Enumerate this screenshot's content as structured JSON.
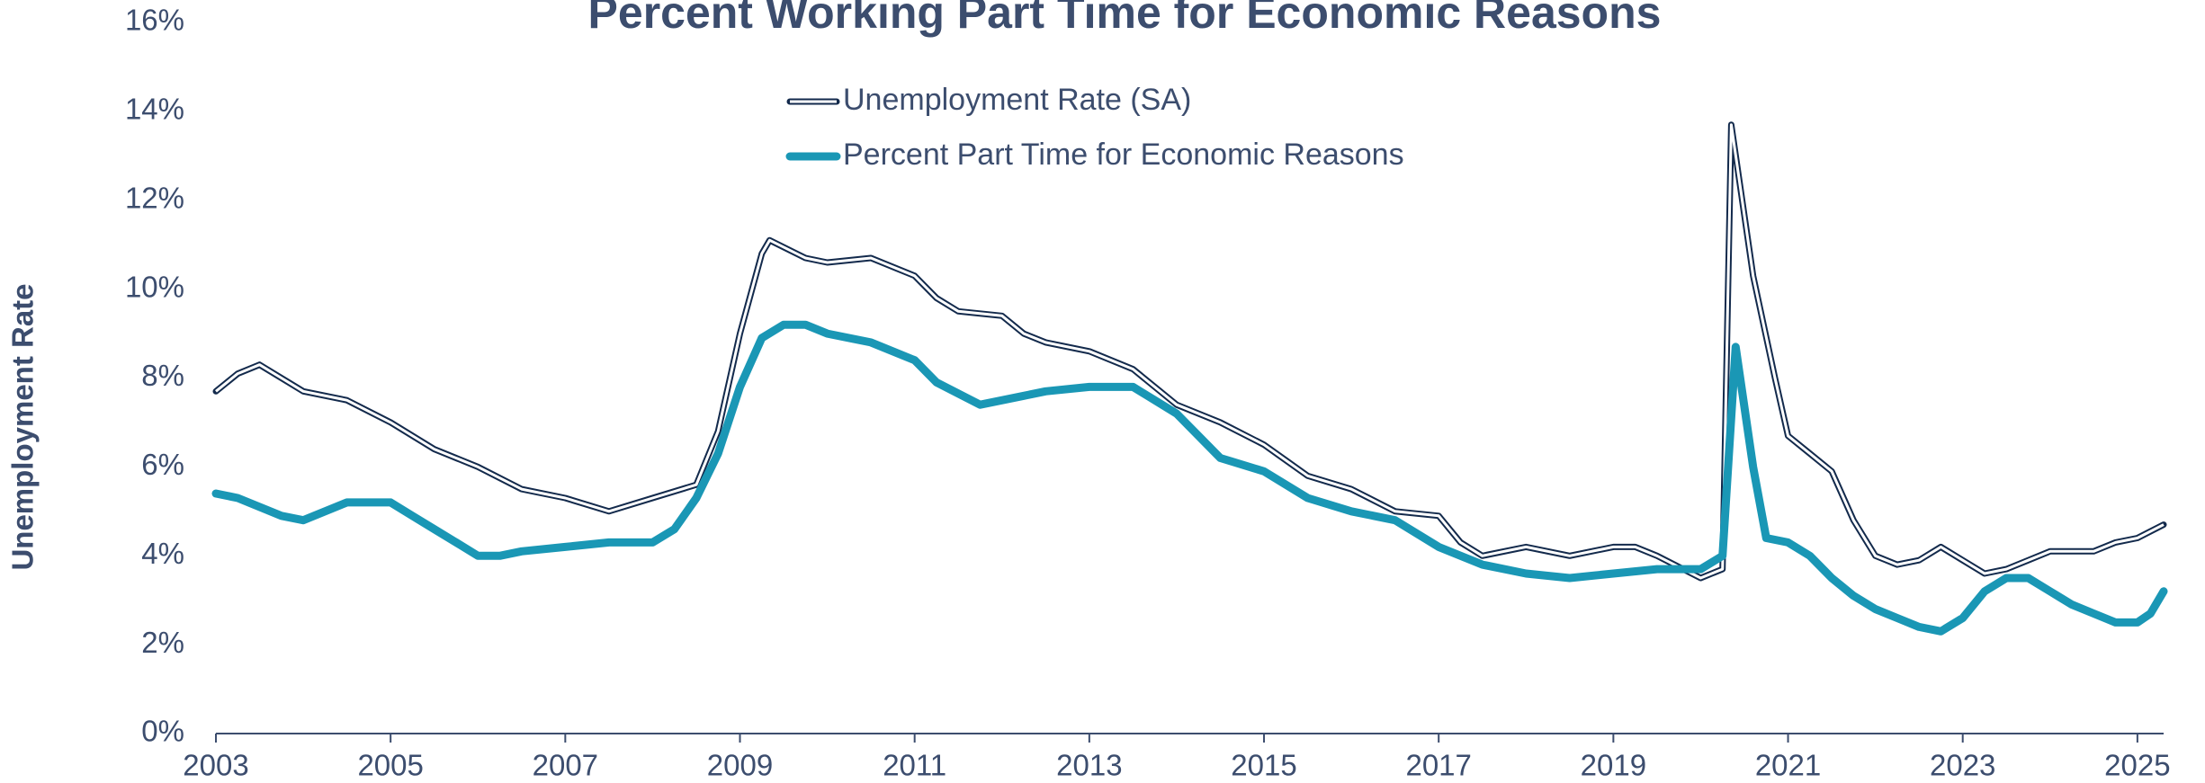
{
  "chart_data": {
    "type": "line",
    "title": "Percent Working Part Time for Economic Reasons",
    "y_label": "Unemployment Rate",
    "xlim": [
      2003,
      2025.3
    ],
    "xticks": [
      2003,
      2005,
      2007,
      2009,
      2011,
      2013,
      2015,
      2017,
      2019,
      2021,
      2023,
      2025
    ],
    "ylim": [
      0,
      16
    ],
    "yticks": [
      {
        "value": 0,
        "label": "0%"
      },
      {
        "value": 2,
        "label": "2%"
      },
      {
        "value": 4,
        "label": "4%"
      },
      {
        "value": 6,
        "label": "6%"
      },
      {
        "value": 8,
        "label": "8%"
      },
      {
        "value": 10,
        "label": "10%"
      },
      {
        "value": 12,
        "label": "12%"
      },
      {
        "value": 14,
        "label": "14%"
      },
      {
        "value": 16,
        "label": "16%"
      }
    ],
    "grid": false,
    "series": [
      {
        "name": "Unemployment Rate (SA)",
        "color": "#132a4c",
        "outline": true,
        "x": [
          2003.0,
          2003.25,
          2003.5,
          2003.75,
          2004.0,
          2004.5,
          2005.0,
          2005.5,
          2006.0,
          2006.5,
          2007.0,
          2007.5,
          2008.0,
          2008.5,
          2008.75,
          2009.0,
          2009.25,
          2009.34,
          2009.75,
          2010.0,
          2010.5,
          2011.0,
          2011.25,
          2011.5,
          2012.0,
          2012.25,
          2012.5,
          2013.0,
          2013.5,
          2014.0,
          2014.5,
          2015.0,
          2015.5,
          2016.0,
          2016.5,
          2017.0,
          2017.25,
          2017.5,
          2018.0,
          2018.5,
          2019.0,
          2019.25,
          2019.5,
          2020.0,
          2020.25,
          2020.35,
          2020.6,
          2020.85,
          2021.0,
          2021.25,
          2021.5,
          2021.75,
          2022.0,
          2022.25,
          2022.5,
          2022.75,
          2023.0,
          2023.25,
          2023.5,
          2023.75,
          2024.0,
          2024.5,
          2024.75,
          2025.0,
          2025.3
        ],
        "values": [
          7.7,
          8.1,
          8.3,
          8.0,
          7.7,
          7.5,
          7.0,
          6.4,
          6.0,
          5.5,
          5.3,
          5.0,
          5.3,
          5.6,
          6.8,
          9.0,
          10.8,
          11.1,
          10.7,
          10.6,
          10.7,
          10.3,
          9.8,
          9.5,
          9.4,
          9.0,
          8.8,
          8.6,
          8.2,
          7.4,
          7.0,
          6.5,
          5.8,
          5.5,
          5.0,
          4.9,
          4.3,
          4.0,
          4.2,
          4.0,
          4.2,
          4.2,
          4.0,
          3.5,
          3.7,
          13.7,
          10.3,
          8.0,
          6.7,
          6.3,
          5.9,
          4.8,
          4.0,
          3.8,
          3.9,
          4.2,
          3.9,
          3.6,
          3.7,
          3.9,
          4.1,
          4.1,
          4.3,
          4.4,
          4.7
        ]
      },
      {
        "name": "Percent Part Time for Economic Reasons",
        "color": "#1a97b5",
        "outline": false,
        "x": [
          2003.0,
          2003.25,
          2003.75,
          2004.0,
          2004.5,
          2005.0,
          2005.25,
          2005.5,
          2005.75,
          2006.0,
          2006.25,
          2006.5,
          2007.0,
          2007.5,
          2008.0,
          2008.25,
          2008.5,
          2008.75,
          2009.0,
          2009.25,
          2009.5,
          2009.75,
          2010.0,
          2010.5,
          2011.0,
          2011.25,
          2011.75,
          2012.25,
          2012.5,
          2013.0,
          2013.5,
          2014.0,
          2014.5,
          2015.0,
          2015.5,
          2016.0,
          2016.5,
          2017.0,
          2017.5,
          2018.0,
          2018.5,
          2019.0,
          2019.5,
          2020.0,
          2020.25,
          2020.4,
          2020.6,
          2020.75,
          2021.0,
          2021.25,
          2021.5,
          2021.75,
          2022.0,
          2022.25,
          2022.5,
          2022.75,
          2023.0,
          2023.25,
          2023.5,
          2023.75,
          2024.0,
          2024.25,
          2024.5,
          2024.75,
          2025.0,
          2025.15,
          2025.3
        ],
        "values": [
          5.4,
          5.3,
          4.9,
          4.8,
          5.2,
          5.2,
          4.9,
          4.6,
          4.3,
          4.0,
          4.0,
          4.1,
          4.2,
          4.3,
          4.3,
          4.6,
          5.3,
          6.3,
          7.8,
          8.9,
          9.2,
          9.2,
          9.0,
          8.8,
          8.4,
          7.9,
          7.4,
          7.6,
          7.7,
          7.8,
          7.8,
          7.2,
          6.2,
          5.9,
          5.3,
          5.0,
          4.8,
          4.2,
          3.8,
          3.6,
          3.5,
          3.6,
          3.7,
          3.7,
          4.0,
          8.7,
          6.0,
          4.4,
          4.3,
          4.0,
          3.5,
          3.1,
          2.8,
          2.6,
          2.4,
          2.3,
          2.6,
          3.2,
          3.5,
          3.5,
          3.2,
          2.9,
          2.7,
          2.5,
          2.5,
          2.7,
          3.2
        ]
      }
    ]
  }
}
